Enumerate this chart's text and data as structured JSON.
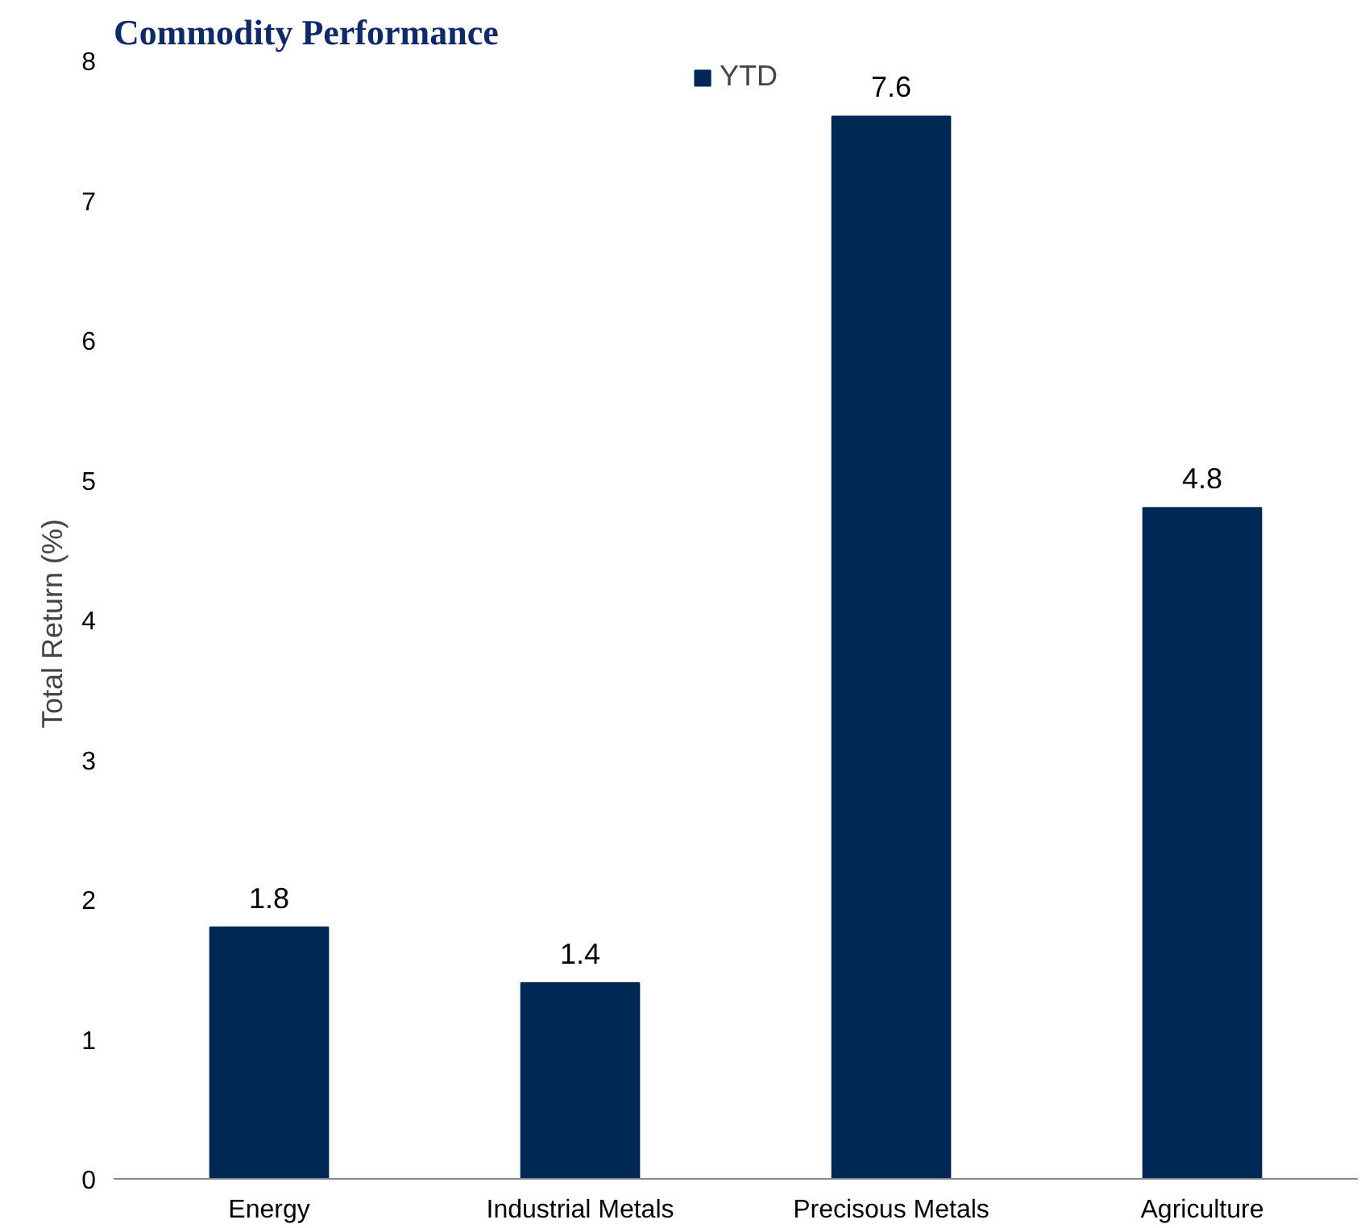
{
  "chart_data": {
    "type": "bar",
    "title": "Commodity Performance",
    "ylabel": "Total Return  (%)",
    "categories": [
      "Energy",
      "Industrial Metals",
      "Precisous Metals",
      "Agriculture"
    ],
    "series": [
      {
        "name": "YTD",
        "color": "#002855",
        "values": [
          1.8,
          1.4,
          7.6,
          4.8
        ]
      }
    ],
    "ylim": [
      0,
      8
    ],
    "yticks": [
      0,
      1,
      2,
      3,
      4,
      5,
      6,
      7,
      8
    ],
    "data_labels": true,
    "grid": false,
    "legend": "top"
  }
}
